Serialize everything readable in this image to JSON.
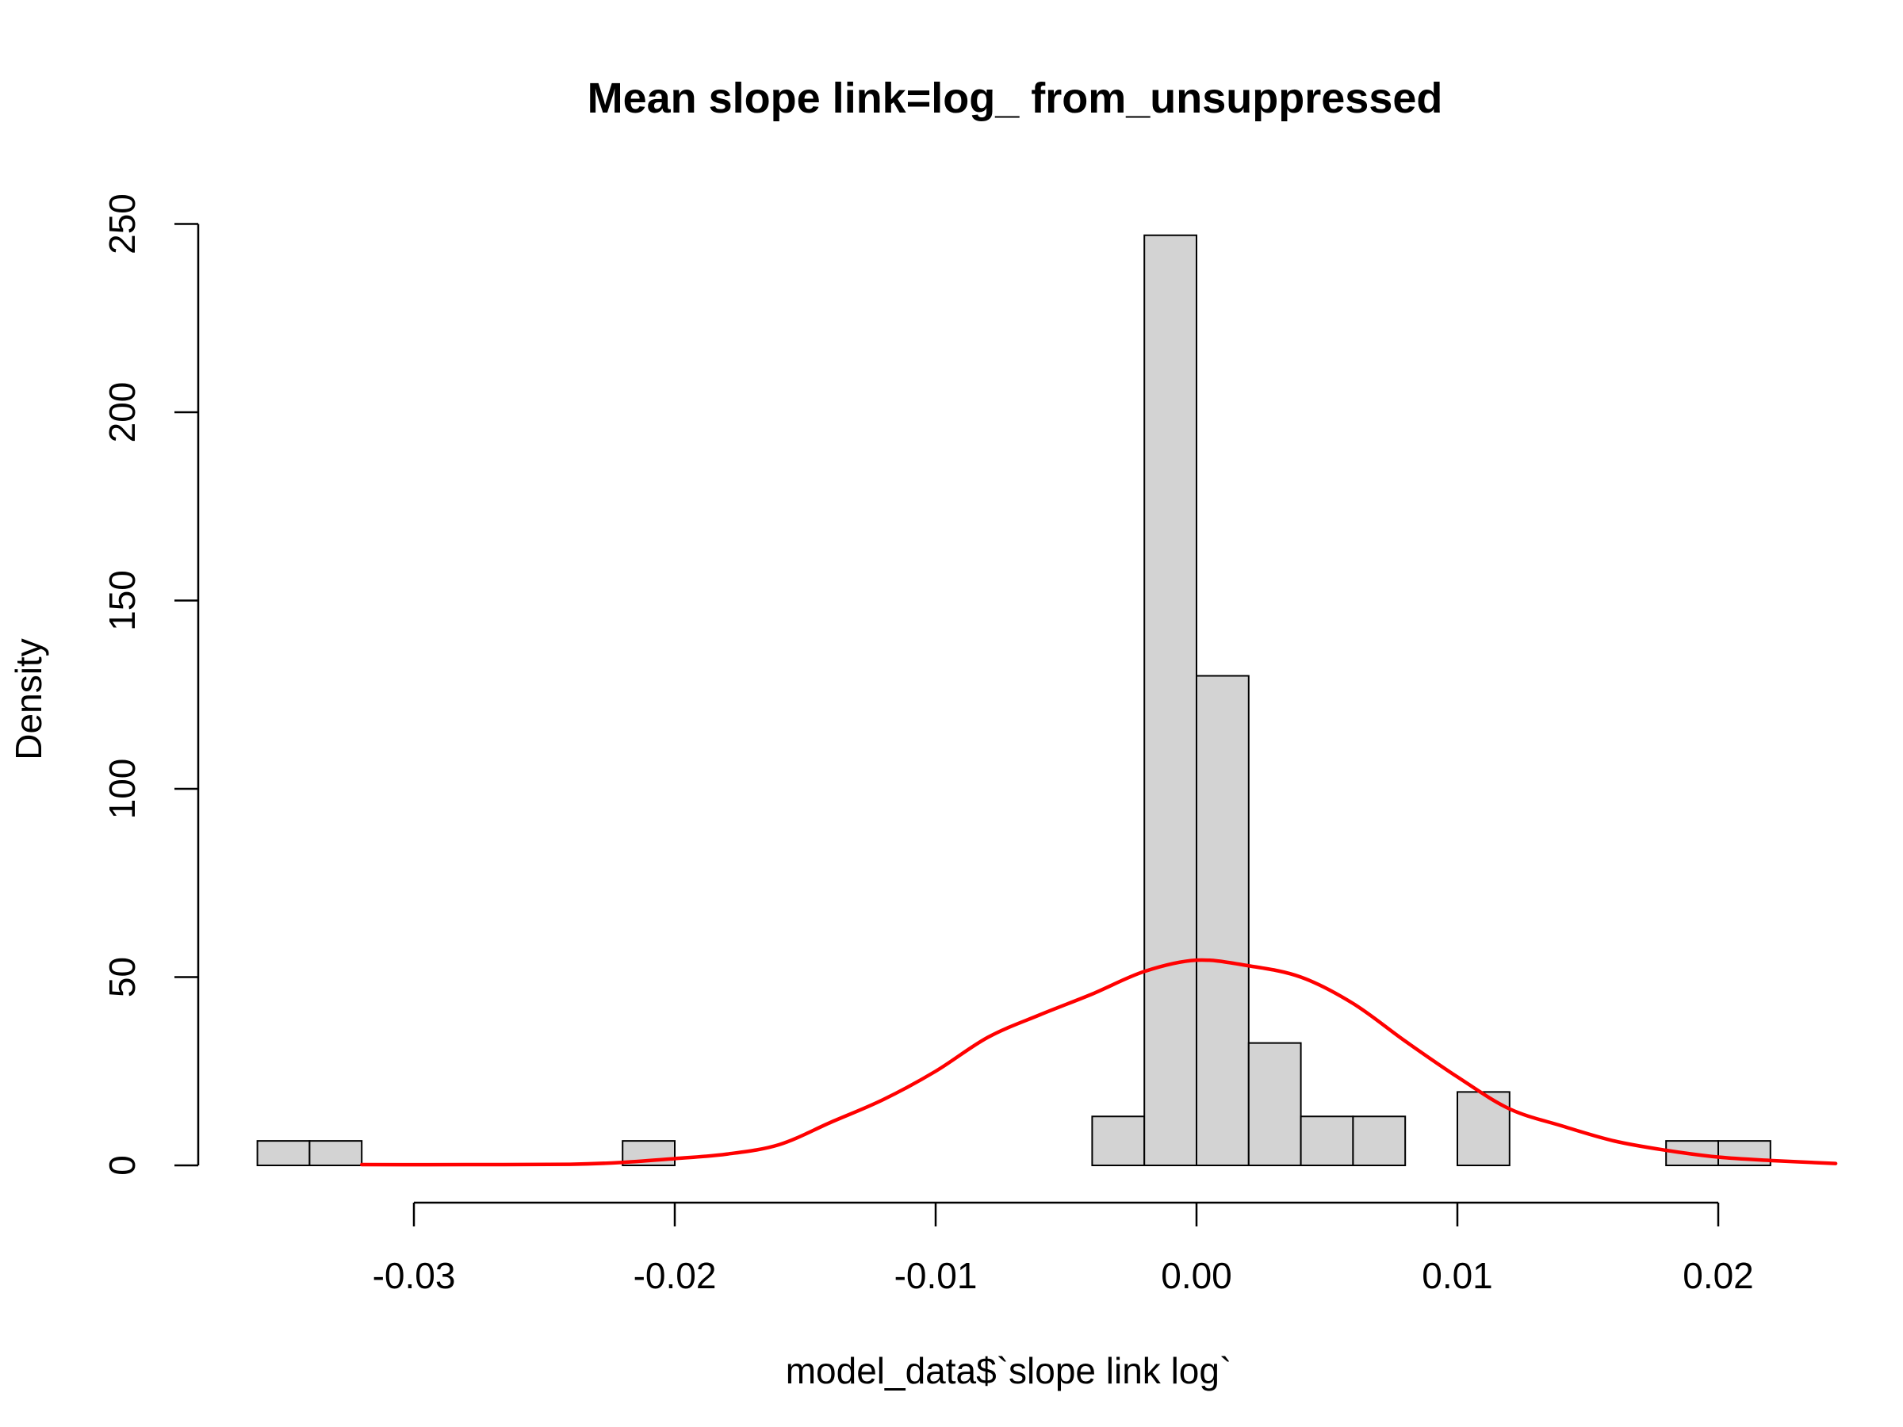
{
  "chart_data": {
    "type": "histogram",
    "title": "Mean slope link=log_ from_unsuppressed",
    "xlabel": "model_data$`slope link log`",
    "ylabel": "Density",
    "xlim": [
      -0.036,
      0.0245
    ],
    "ylim": [
      0,
      250
    ],
    "x_ticks": [
      -0.03,
      -0.02,
      -0.01,
      0.0,
      0.01,
      0.02
    ],
    "x_tick_labels": [
      "-0.03",
      "-0.02",
      "-0.01",
      "0.00",
      "0.01",
      "0.02"
    ],
    "y_ticks": [
      0,
      50,
      100,
      150,
      200,
      250
    ],
    "y_tick_labels": [
      "0",
      "50",
      "100",
      "150",
      "200",
      "250"
    ],
    "bin_width": 0.002,
    "bins": [
      {
        "start": -0.036,
        "end": -0.034,
        "density": 6.5
      },
      {
        "start": -0.034,
        "end": -0.032,
        "density": 6.5
      },
      {
        "start": -0.022,
        "end": -0.02,
        "density": 6.5
      },
      {
        "start": -0.004,
        "end": -0.002,
        "density": 13
      },
      {
        "start": -0.002,
        "end": 0.0,
        "density": 247
      },
      {
        "start": 0.0,
        "end": 0.002,
        "density": 130
      },
      {
        "start": 0.002,
        "end": 0.004,
        "density": 32.5
      },
      {
        "start": 0.004,
        "end": 0.006,
        "density": 13
      },
      {
        "start": 0.006,
        "end": 0.008,
        "density": 13
      },
      {
        "start": 0.01,
        "end": 0.012,
        "density": 19.5
      },
      {
        "start": 0.018,
        "end": 0.02,
        "density": 6.5
      },
      {
        "start": 0.02,
        "end": 0.022,
        "density": 6.5
      }
    ],
    "bar_fill": "#d3d3d3",
    "bar_stroke": "#000000",
    "density_curve": {
      "color": "#ff0000",
      "points": [
        [
          -0.032,
          0.2
        ],
        [
          -0.028,
          0.2
        ],
        [
          -0.024,
          0.3
        ],
        [
          -0.022,
          0.8
        ],
        [
          -0.02,
          1.8
        ],
        [
          -0.018,
          3.0
        ],
        [
          -0.016,
          5.5
        ],
        [
          -0.014,
          11.5
        ],
        [
          -0.012,
          17.5
        ],
        [
          -0.01,
          25.0
        ],
        [
          -0.008,
          34.0
        ],
        [
          -0.006,
          40.0
        ],
        [
          -0.004,
          45.5
        ],
        [
          -0.002,
          51.5
        ],
        [
          0.0,
          54.5
        ],
        [
          0.002,
          53.0
        ],
        [
          0.004,
          50.0
        ],
        [
          0.006,
          43.0
        ],
        [
          0.008,
          33.0
        ],
        [
          0.01,
          23.5
        ],
        [
          0.012,
          15.0
        ],
        [
          0.014,
          10.5
        ],
        [
          0.016,
          6.5
        ],
        [
          0.018,
          4.0
        ],
        [
          0.02,
          2.2
        ],
        [
          0.022,
          1.3
        ],
        [
          0.0245,
          0.5
        ]
      ]
    }
  }
}
